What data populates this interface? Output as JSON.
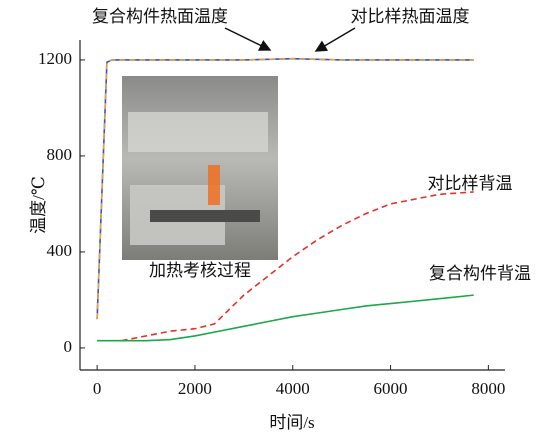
{
  "chart_data": {
    "type": "line",
    "x_label": "时间/s",
    "y_label": "温度/℃",
    "photo_caption": "加热考核过程",
    "xlim": [
      -350,
      8340
    ],
    "ylim": [
      -92,
      1283
    ],
    "xticks": [
      0,
      2000,
      4000,
      6000,
      8000
    ],
    "yticks": [
      0,
      400,
      800,
      1200
    ],
    "grid": false,
    "series": [
      {
        "name": "复合构件热面温度",
        "color": "#2f55c8",
        "dash": false,
        "x": [
          0,
          200,
          300,
          1000,
          2000,
          3000,
          4000,
          5000,
          6000,
          7000,
          7700
        ],
        "values": [
          120,
          1190,
          1200,
          1200,
          1200,
          1200,
          1205,
          1200,
          1200,
          1200,
          1200
        ]
      },
      {
        "name": "对比样热面温度",
        "color": "#e8a13a",
        "dash": true,
        "x": [
          0,
          200,
          300,
          1000,
          2000,
          3000,
          4000,
          5000,
          6000,
          7000,
          7700
        ],
        "values": [
          120,
          1190,
          1200,
          1200,
          1200,
          1200,
          1205,
          1200,
          1200,
          1200,
          1200
        ]
      },
      {
        "name": "对比样背温",
        "color": "#e8302a",
        "dash": true,
        "x": [
          500,
          1000,
          1500,
          2000,
          2400,
          2700,
          3000,
          3500,
          4000,
          4500,
          5000,
          5500,
          6000,
          6500,
          7000,
          7700
        ],
        "values": [
          30,
          50,
          70,
          80,
          100,
          160,
          220,
          300,
          380,
          450,
          510,
          560,
          600,
          620,
          640,
          650
        ]
      },
      {
        "name": "复合构件背温",
        "color": "#1aa84a",
        "dash": false,
        "x": [
          0,
          500,
          1000,
          1500,
          2000,
          2500,
          3000,
          3500,
          4000,
          4500,
          5000,
          5500,
          6000,
          6500,
          7000,
          7700
        ],
        "values": [
          30,
          30,
          30,
          35,
          50,
          70,
          90,
          110,
          130,
          145,
          160,
          175,
          185,
          195,
          205,
          220
        ]
      }
    ]
  }
}
